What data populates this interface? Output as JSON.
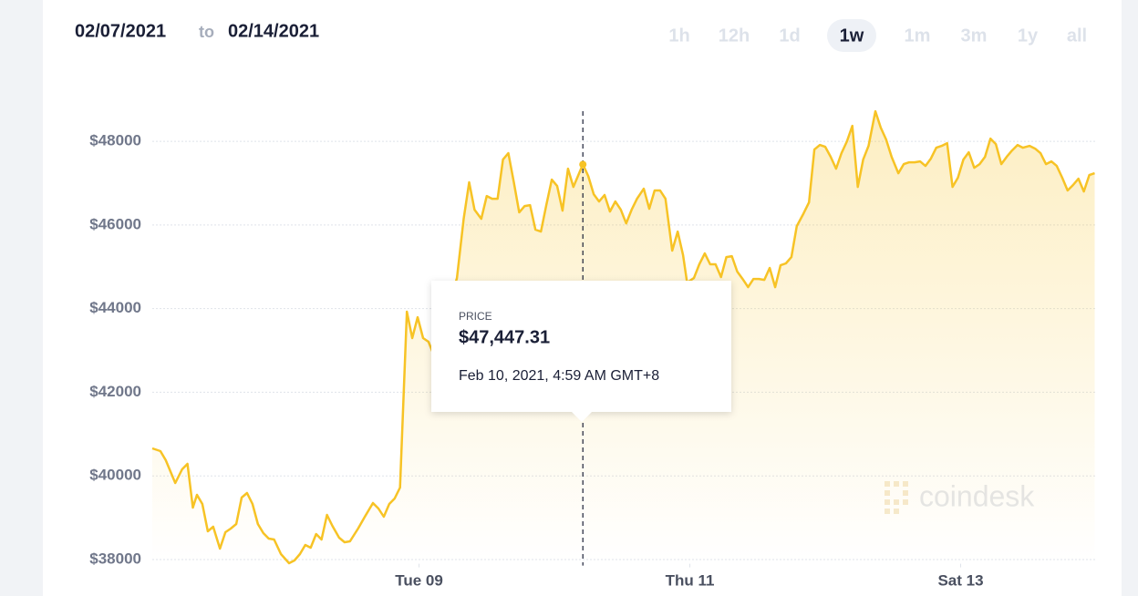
{
  "header": {
    "from": "02/07/2021",
    "to": "to",
    "until": "02/14/2021"
  },
  "ranges": {
    "items": [
      "1h",
      "12h",
      "1d",
      "1w",
      "1m",
      "3m",
      "1y",
      "all"
    ],
    "active": 3
  },
  "watermark": "coindesk",
  "chart_data": {
    "type": "line",
    "color": "#f7c325",
    "grid": true,
    "x": [
      7.03,
      7.09,
      7.13,
      7.2,
      7.25,
      7.29,
      7.33,
      7.36,
      7.4,
      7.44,
      7.48,
      7.53,
      7.57,
      7.61,
      7.65,
      7.69,
      7.73,
      7.77,
      7.81,
      7.85,
      7.89,
      7.93,
      7.98,
      8.04,
      8.08,
      8.12,
      8.16,
      8.2,
      8.24,
      8.28,
      8.32,
      8.36,
      8.41,
      8.45,
      8.49,
      8.55,
      8.6,
      8.66,
      8.7,
      8.74,
      8.78,
      8.82,
      8.86,
      8.91,
      8.95,
      8.99,
      9.03,
      9.07,
      9.11,
      9.28,
      9.33,
      9.37,
      9.41,
      9.46,
      9.5,
      9.54,
      9.58,
      9.62,
      9.66,
      9.7,
      9.74,
      9.78,
      9.82,
      9.86,
      9.9,
      9.94,
      9.98,
      10.02,
      10.06,
      10.1,
      10.14,
      10.21,
      10.25,
      10.29,
      10.33,
      10.37,
      10.41,
      10.45,
      10.49,
      10.53,
      10.57,
      10.61,
      10.66,
      10.7,
      10.74,
      10.78,
      10.82,
      10.87,
      10.91,
      10.95,
      10.98,
      11.03,
      11.07,
      11.11,
      11.15,
      11.19,
      11.23,
      11.27,
      11.31,
      11.35,
      11.39,
      11.43,
      11.47,
      11.51,
      11.55,
      11.59,
      11.63,
      11.67,
      11.71,
      11.75,
      11.79,
      11.84,
      11.88,
      11.92,
      11.96,
      12.0,
      12.04,
      12.08,
      12.12,
      12.16,
      12.2,
      12.24,
      12.28,
      12.32,
      12.37,
      12.41,
      12.45,
      12.49,
      12.54,
      12.58,
      12.62,
      12.66,
      12.7,
      12.74,
      12.78,
      12.82,
      12.86,
      12.9,
      12.94,
      12.98,
      13.02,
      13.06,
      13.1,
      13.14,
      13.18,
      13.22,
      13.26,
      13.3,
      13.34,
      13.38,
      13.42,
      13.46,
      13.51,
      13.55,
      13.59,
      13.63,
      13.67,
      13.71,
      13.75,
      13.79,
      13.83,
      13.87,
      13.91,
      13.95,
      13.99
    ],
    "values": [
      40658,
      40593,
      40375,
      39830,
      40157,
      40288,
      39242,
      39547,
      39329,
      38675,
      38784,
      38261,
      38654,
      38741,
      38850,
      39482,
      39590,
      39329,
      38850,
      38632,
      38501,
      38479,
      38131,
      37913,
      37978,
      38131,
      38349,
      38283,
      38610,
      38479,
      39067,
      38806,
      38523,
      38414,
      38436,
      38741,
      39024,
      39351,
      39220,
      39024,
      39329,
      39460,
      39721,
      43926,
      43294,
      43795,
      43294,
      43207,
      42880,
      44732,
      46148,
      47020,
      46366,
      46148,
      46693,
      46627,
      46627,
      47564,
      47717,
      47020,
      46301,
      46453,
      46475,
      45887,
      45843,
      46475,
      47085,
      46932,
      46344,
      47346,
      46911,
      47447.31,
      47172,
      46736,
      46562,
      46715,
      46322,
      46562,
      46366,
      46039,
      46366,
      46627,
      46867,
      46388,
      46824,
      46824,
      46627,
      45386,
      45843,
      45277,
      44623,
      44732,
      45059,
      45320,
      45059,
      45059,
      44754,
      45233,
      45255,
      44885,
      44710,
      44514,
      44710,
      44710,
      44688,
      44972,
      44514,
      45037,
      45081,
      45233,
      45974,
      46279,
      46540,
      47804,
      47913,
      47869,
      47630,
      47346,
      47717,
      48000,
      48370,
      46911,
      47564,
      47891,
      48719,
      48327,
      48044,
      47630,
      47237,
      47455,
      47499,
      47499,
      47521,
      47412,
      47586,
      47847,
      47891,
      47956,
      46911,
      47129,
      47564,
      47738,
      47368,
      47455,
      47630,
      48065,
      47935,
      47455,
      47630,
      47782,
      47913,
      47847,
      47891,
      47826,
      47717,
      47455,
      47521,
      47412,
      47129,
      46824,
      46955,
      47107,
      46802,
      47194,
      47237
    ],
    "xlim": [
      7.03,
      14.0
    ],
    "xticks": [
      {
        "value": 9,
        "label": "Tue 09"
      },
      {
        "value": 11,
        "label": "Thu 11"
      },
      {
        "value": 13,
        "label": "Sat 13"
      }
    ],
    "ylim": [
      37900,
      49200
    ],
    "yticks": [
      {
        "value": 38000,
        "label": "$38000"
      },
      {
        "value": 40000,
        "label": "$40000"
      },
      {
        "value": 42000,
        "label": "$42000"
      },
      {
        "value": 44000,
        "label": "$44000"
      },
      {
        "value": 46000,
        "label": "$46000"
      },
      {
        "value": 48000,
        "label": "$48000"
      }
    ],
    "tooltip": {
      "index": 71,
      "title": "PRICE",
      "price": "$47,447.31",
      "time": "Feb 10, 2021, 4:59 AM GMT+8"
    }
  }
}
